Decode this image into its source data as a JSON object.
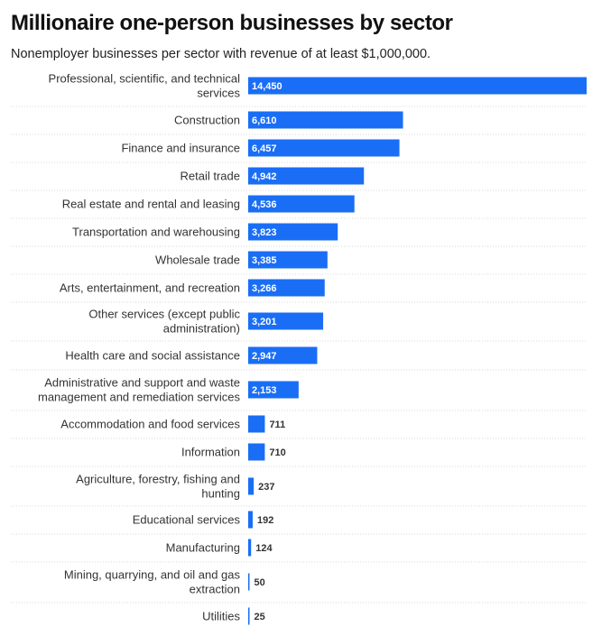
{
  "chart_data": {
    "type": "bar",
    "orientation": "horizontal",
    "title": "Millionaire one-person businesses by sector",
    "subtitle": "Nonemployer businesses per sector with revenue of at least $1,000,000.",
    "bar_color": "#1a6ef5",
    "categories": [
      [
        "Professional, scientific, and technical",
        "services"
      ],
      [
        "Construction"
      ],
      [
        "Finance and insurance"
      ],
      [
        "Retail trade"
      ],
      [
        "Real estate and rental and leasing"
      ],
      [
        "Transportation and warehousing"
      ],
      [
        "Wholesale trade"
      ],
      [
        "Arts, entertainment, and recreation"
      ],
      [
        "Other services (except public",
        "administration)"
      ],
      [
        "Health care and social assistance"
      ],
      [
        "Administrative and support and waste",
        "management and remediation services"
      ],
      [
        "Accommodation and food services"
      ],
      [
        "Information"
      ],
      [
        "Agriculture, forestry, fishing and",
        "hunting"
      ],
      [
        "Educational services"
      ],
      [
        "Manufacturing"
      ],
      [
        "Mining, quarrying, and oil and gas",
        "extraction"
      ],
      [
        "Utilities"
      ]
    ],
    "values": [
      14450,
      6610,
      6457,
      4942,
      4536,
      3823,
      3385,
      3266,
      3201,
      2947,
      2153,
      711,
      710,
      237,
      192,
      124,
      50,
      25
    ],
    "value_labels": [
      "14,450",
      "6,610",
      "6,457",
      "4,942",
      "4,536",
      "3,823",
      "3,385",
      "3,266",
      "3,201",
      "2,947",
      "2,153",
      "711",
      "710",
      "237",
      "192",
      "124",
      "50",
      "25"
    ],
    "xlim": [
      0,
      14450
    ]
  }
}
